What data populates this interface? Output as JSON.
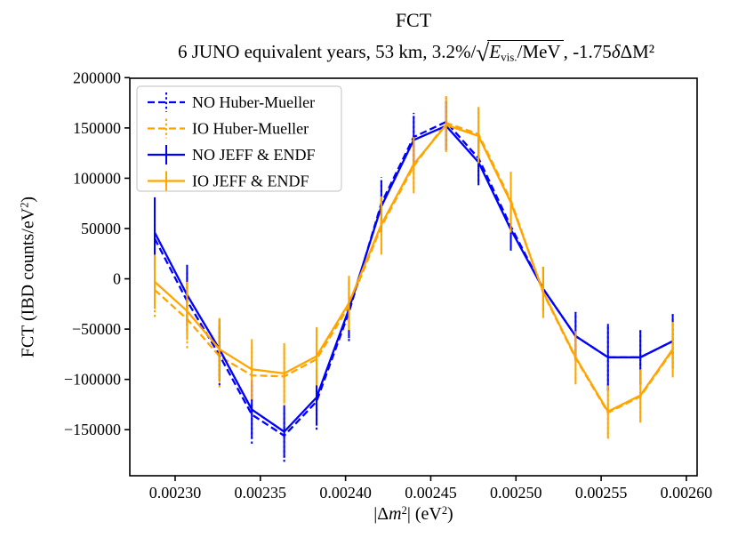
{
  "figure": {
    "title": "FCT",
    "subtitle": {
      "prefix": "6 JUNO equivalent years, 53 km, 3.2%/",
      "radical": "√",
      "sqrt_E": "E",
      "sqrt_sub": "vis.",
      "sqrt_rest": "/MeV",
      "suffix1": ", -1.75",
      "delta": "δ",
      "suffix2": "ΔM²"
    },
    "xlabel_parts": {
      "p1": "|Δ",
      "m": "m",
      "sup1": "2",
      "p2": "| (eV",
      "sup2": "2",
      "p3": ")"
    },
    "ylabel_parts": {
      "p1": "FCT (IBD counts/eV",
      "sup": "2",
      "p2": ")"
    }
  },
  "chart_data": {
    "type": "line",
    "title": "FCT",
    "subtitle": "6 JUNO equivalent years, 53 km, 3.2%/sqrt(E_vis./MeV), -1.75δΔM²",
    "xlabel": "|Δm²| (eV²)",
    "ylabel": "FCT (IBD counts/eV²)",
    "grid": false,
    "legend_position": "upper left",
    "xlim": [
      0.0022734,
      0.0026063
    ],
    "ylim": [
      -195800,
      199400
    ],
    "x_ticks": {
      "values": [
        0.0023,
        0.00235,
        0.0024,
        0.00245,
        0.0025,
        0.00255,
        0.0026
      ],
      "labels": [
        "0.00230",
        "0.00235",
        "0.00240",
        "0.00245",
        "0.00250",
        "0.00255",
        "0.00260"
      ]
    },
    "y_ticks": {
      "values": [
        -150000,
        -100000,
        -50000,
        0,
        50000,
        100000,
        150000,
        200000
      ],
      "labels": [
        "−150000",
        "−100000",
        "−50000",
        "0",
        "50000",
        "100000",
        "150000",
        "200000"
      ]
    },
    "x": [
      0.002288,
      0.002307,
      0.002326,
      0.002345,
      0.002364,
      0.002383,
      0.002402,
      0.002421,
      0.00244,
      0.002459,
      0.002478,
      0.002497,
      0.002516,
      0.002535,
      0.002554,
      0.002573,
      0.002592
    ],
    "series": [
      {
        "name": "NO Huber-Mueller",
        "color": "#0000ff",
        "style": "dashed",
        "values": [
          40000,
          -22000,
          -76000,
          -135000,
          -156000,
          -122000,
          -33000,
          75000,
          141000,
          156000,
          120000,
          52000,
          -10000,
          -57000,
          -78000,
          -78000,
          -62000
        ],
        "errors": [
          35000,
          30000,
          30000,
          29000,
          26000,
          28000,
          29000,
          26000,
          24000,
          24000,
          23000,
          21000,
          22000,
          24000,
          33000,
          27000,
          27000
        ]
      },
      {
        "name": "IO Huber-Mueller",
        "color": "#ffa500",
        "style": "dashed",
        "values": [
          -11000,
          -40000,
          -77000,
          -96000,
          -97000,
          -80000,
          -27000,
          52000,
          112000,
          155000,
          144000,
          78000,
          -14000,
          -79000,
          -133000,
          -117000,
          -71000
        ],
        "errors": [
          27000,
          29000,
          31000,
          30000,
          30000,
          29000,
          27000,
          28000,
          27000,
          27000,
          27000,
          30000,
          25000,
          26000,
          26000,
          26000,
          27000
        ]
      },
      {
        "name": "NO JEFF & ENDF",
        "color": "#0000ff",
        "style": "solid",
        "values": [
          46000,
          -16000,
          -70000,
          -130000,
          -152000,
          -118000,
          -30000,
          72000,
          138000,
          152000,
          116000,
          49000,
          -10000,
          -57000,
          -78000,
          -78000,
          -62000
        ],
        "errors": [
          35000,
          30000,
          30000,
          29000,
          26000,
          28000,
          29000,
          26000,
          24000,
          24000,
          23000,
          21000,
          22000,
          24000,
          33000,
          27000,
          27000
        ]
      },
      {
        "name": "IO JEFF & ENDF",
        "color": "#ffa500",
        "style": "solid",
        "values": [
          -3000,
          -32000,
          -70000,
          -90000,
          -94000,
          -77000,
          -24000,
          54000,
          114000,
          153000,
          142000,
          76000,
          -13000,
          -78000,
          -132000,
          -116000,
          -70000
        ],
        "errors": [
          27000,
          29000,
          31000,
          30000,
          30000,
          29000,
          27000,
          28000,
          27000,
          27000,
          27000,
          30000,
          25000,
          26000,
          26000,
          26000,
          27000
        ]
      }
    ]
  },
  "colors": {
    "axis": "#000000",
    "legend_border": "#cccccc",
    "background": "#ffffff"
  }
}
